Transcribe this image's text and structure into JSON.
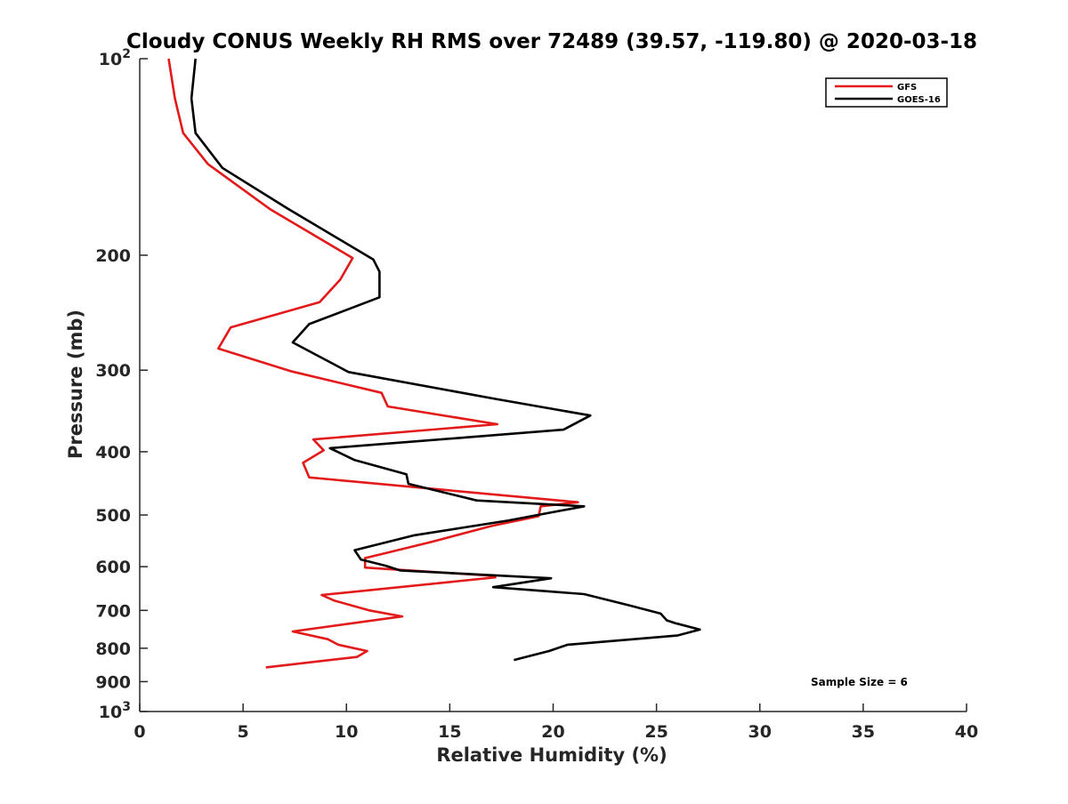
{
  "chart_data": {
    "type": "line",
    "title": "Cloudy CONUS Weekly RH RMS over 72489 (39.57, -119.80) @ 2020-03-18",
    "xlabel": "Relative Humidity (%)",
    "ylabel": "Pressure (mb)",
    "xlim": [
      0,
      40
    ],
    "ylim": [
      100,
      1000
    ],
    "y_scale": "log",
    "y_reversed": true,
    "grid": false,
    "legend_position": "top-right",
    "x_ticks": [
      0,
      5,
      10,
      15,
      20,
      25,
      30,
      35,
      40
    ],
    "x_tick_labels": [
      "0",
      "5",
      "10",
      "15",
      "20",
      "25",
      "30",
      "35",
      "40"
    ],
    "y_ticks": [
      {
        "value": 100,
        "label": "10",
        "exp": "2"
      },
      {
        "value": 200,
        "label": "200",
        "exp": ""
      },
      {
        "value": 300,
        "label": "300",
        "exp": ""
      },
      {
        "value": 400,
        "label": "400",
        "exp": ""
      },
      {
        "value": 500,
        "label": "500",
        "exp": ""
      },
      {
        "value": 600,
        "label": "600",
        "exp": ""
      },
      {
        "value": 700,
        "label": "700",
        "exp": ""
      },
      {
        "value": 800,
        "label": "800",
        "exp": ""
      },
      {
        "value": 900,
        "label": "900",
        "exp": ""
      },
      {
        "value": 1000,
        "label": "10",
        "exp": "3"
      }
    ],
    "annotation": "Sample Size = 6",
    "series": [
      {
        "name": "GFS",
        "color": "#e21a1a",
        "points": [
          [
            1.4,
            100
          ],
          [
            1.7,
            115
          ],
          [
            2.1,
            130
          ],
          [
            3.3,
            145
          ],
          [
            6.3,
            170
          ],
          [
            10.3,
            202
          ],
          [
            9.7,
            218
          ],
          [
            8.7,
            236
          ],
          [
            4.4,
            258
          ],
          [
            3.8,
            278
          ],
          [
            7.3,
            301
          ],
          [
            11.7,
            325
          ],
          [
            12.0,
            341
          ],
          [
            17.3,
            363
          ],
          [
            8.4,
            383
          ],
          [
            8.9,
            398
          ],
          [
            7.9,
            416
          ],
          [
            8.2,
            438
          ],
          [
            21.2,
            478
          ],
          [
            19.4,
            485
          ],
          [
            19.3,
            502
          ],
          [
            17.0,
            520
          ],
          [
            14.1,
            550
          ],
          [
            11.9,
            572
          ],
          [
            10.9,
            582
          ],
          [
            10.9,
            602
          ],
          [
            17.2,
            620
          ],
          [
            17.2,
            623
          ],
          [
            8.8,
            663
          ],
          [
            9.4,
            676
          ],
          [
            11.1,
            700
          ],
          [
            12.7,
            715
          ],
          [
            7.4,
            754
          ],
          [
            9.1,
            775
          ],
          [
            9.6,
            790
          ],
          [
            11.0,
            808
          ],
          [
            10.5,
            825
          ],
          [
            6.1,
            856
          ]
        ]
      },
      {
        "name": "GOES-16",
        "color": "#000000",
        "points": [
          [
            2.7,
            100
          ],
          [
            2.5,
            115
          ],
          [
            2.7,
            130
          ],
          [
            4.0,
            147
          ],
          [
            7.2,
            170
          ],
          [
            11.3,
            203
          ],
          [
            11.6,
            212
          ],
          [
            11.6,
            232
          ],
          [
            8.2,
            255
          ],
          [
            7.4,
            272
          ],
          [
            10.1,
            302
          ],
          [
            17.2,
            332
          ],
          [
            21.8,
            352
          ],
          [
            20.5,
            370
          ],
          [
            9.2,
            395
          ],
          [
            10.4,
            412
          ],
          [
            12.9,
            433
          ],
          [
            13.0,
            448
          ],
          [
            16.3,
            475
          ],
          [
            21.5,
            485
          ],
          [
            17.8,
            510
          ],
          [
            13.3,
            537
          ],
          [
            10.4,
            566
          ],
          [
            10.7,
            585
          ],
          [
            11.9,
            598
          ],
          [
            12.6,
            608
          ],
          [
            19.9,
            625
          ],
          [
            17.1,
            645
          ],
          [
            21.5,
            661
          ],
          [
            23.7,
            688
          ],
          [
            25.2,
            708
          ],
          [
            25.5,
            725
          ],
          [
            25.9,
            732
          ],
          [
            27.1,
            749
          ],
          [
            26.0,
            765
          ],
          [
            20.7,
            790
          ],
          [
            19.8,
            808
          ],
          [
            18.1,
            834
          ]
        ]
      }
    ]
  }
}
